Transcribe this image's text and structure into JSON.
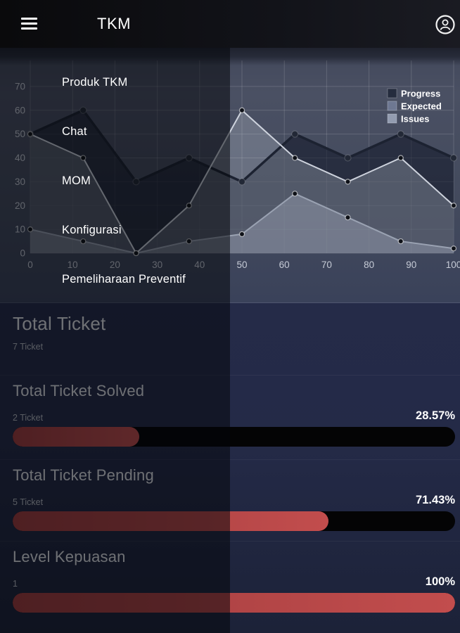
{
  "app": {
    "title": "TKM"
  },
  "menu": {
    "items": [
      "Produk TKM",
      "Chat",
      "MOM",
      "Konfigurasi",
      "Pemeliharaan Preventif"
    ]
  },
  "chart_data": {
    "type": "area",
    "x": [
      0,
      12.5,
      25,
      37.5,
      50,
      62.5,
      75,
      87.5,
      100
    ],
    "series": [
      {
        "name": "Progress",
        "values": [
          50,
          60,
          30,
          40,
          30,
          50,
          40,
          50,
          40
        ],
        "line_color": "#1c2231",
        "fill_color": "rgba(16,22,38,0.55)",
        "swatch": "#252c3e",
        "line_width": 3.5,
        "marker_r": 4.5,
        "marker_fill": "#222836",
        "marker_stroke": "rgba(255,255,255,0.18)"
      },
      {
        "name": "Expected",
        "values": [
          50,
          40,
          0,
          20,
          60,
          40,
          30,
          40,
          20
        ],
        "line_color": "#ced3dd",
        "fill_color": "rgba(210,215,228,0.26)",
        "swatch": "#6e7892",
        "line_width": 2,
        "marker_r": 3.5,
        "marker_fill": "#0e1118",
        "marker_stroke": "rgba(255,255,255,0.6)"
      },
      {
        "name": "Issues",
        "values": [
          10,
          5,
          0,
          5,
          8,
          25,
          15,
          5,
          2
        ],
        "line_color": "#9aa2b2",
        "fill_color": "rgba(165,173,190,0.40)",
        "swatch": "#939cb0",
        "line_width": 2,
        "marker_r": 3.5,
        "marker_fill": "#0e1118",
        "marker_stroke": "rgba(255,255,255,0.6)"
      }
    ],
    "x_ticks": [
      0,
      10,
      20,
      30,
      40,
      50,
      60,
      70,
      80,
      90,
      100
    ],
    "y_ticks": [
      0,
      10,
      20,
      30,
      40,
      50,
      60,
      70
    ],
    "xlim": [
      0,
      100
    ],
    "ylim": [
      0,
      70
    ],
    "grid": true,
    "legend_position": "top-right",
    "title": "",
    "xlabel": "",
    "ylabel": ""
  },
  "stats": {
    "total": {
      "title": "Total Ticket",
      "sub": "7 Ticket"
    },
    "solved": {
      "title": "Total Ticket Solved",
      "sub": "2 Ticket",
      "percent_label": "28.57%",
      "percent": 28.57
    },
    "pending": {
      "title": "Total Ticket Pending",
      "sub": "5 Ticket",
      "percent_label": "71.43%",
      "percent": 71.43
    },
    "satisfaction": {
      "title": "Level Kepuasan",
      "sub": "1",
      "percent_label": "100%",
      "percent": 100
    }
  },
  "colors": {
    "accent_red": "#c24d4d",
    "accent_red_dark": "#a03c3e",
    "bar_track": "#040405",
    "page_bg_top": "#272d4c",
    "page_bg": "#242a47",
    "page_bg_bot": "#1c2238",
    "grid_line": "rgba(255,255,255,0.15)",
    "axis_label": "#c6cbd6",
    "legend_text": "#ffffff"
  }
}
